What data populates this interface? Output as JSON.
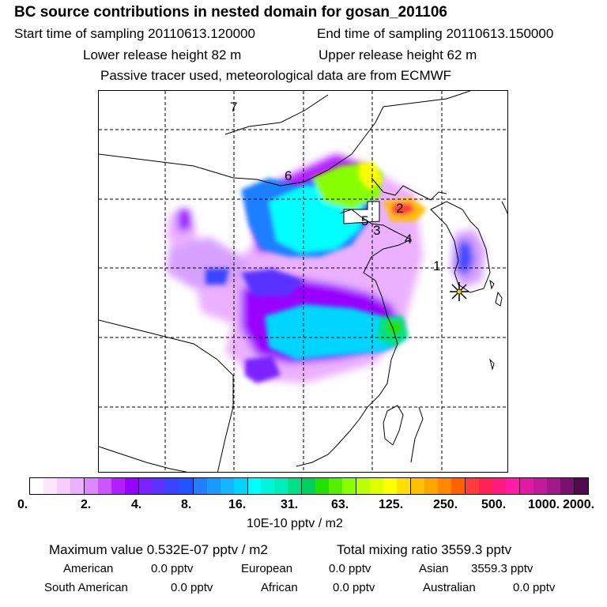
{
  "header": {
    "title": "BC  source contributions in nested domain for gosan_201106",
    "start_label": "Start time of sampling 20110613.120000",
    "end_label": "End time of sampling 20110613.150000",
    "lower_label": "Lower release height   82 m",
    "upper_label": "Upper release height   62 m",
    "tracer_note": "Passive tracer used, meteorological data are from ECMWF"
  },
  "map": {
    "region_labels": [
      "7",
      "6",
      "2",
      "5",
      "3",
      "4",
      "1"
    ],
    "receptor_icon": "star-icon"
  },
  "colorbar": {
    "unit": "10E-10 pptv / m2",
    "tick_labels": [
      "0.",
      "2.",
      "4.",
      "8.",
      "16.",
      "31.",
      "63.",
      "125.",
      "250.",
      "500.",
      "1000.",
      "2000."
    ],
    "colors": [
      "#ffffff",
      "#ffe6ff",
      "#f7ccff",
      "#ebb0ff",
      "#dd88ff",
      "#cc55ff",
      "#b41eff",
      "#9a00ff",
      "#7b22ff",
      "#5a33ff",
      "#3a44ff",
      "#2255ff",
      "#1f7fff",
      "#1a99ff",
      "#11b6ff",
      "#00d5ff",
      "#00ffff",
      "#00f5dd",
      "#00eebb",
      "#00e088",
      "#00d060",
      "#22e000",
      "#55ee00",
      "#88ff00",
      "#bbff00",
      "#ddff00",
      "#ffff00",
      "#ffe000",
      "#ffc000",
      "#ffa500",
      "#ff8800",
      "#ff6000",
      "#ff3c3c",
      "#ff2255",
      "#ff1a80",
      "#ff1aaa",
      "#e01aa5",
      "#c01a9a",
      "#a0188c",
      "#7a1070",
      "#520a50"
    ]
  },
  "stats": {
    "max_label": "Maximum value  0.532E-07 pptv / m2",
    "total_label": "Total mixing ratio     3559.3 pptv",
    "regions": [
      {
        "name": "American",
        "value": "0.0 pptv"
      },
      {
        "name": "European",
        "value": "0.0 pptv"
      },
      {
        "name": "Asian",
        "value": "3559.3 pptv"
      },
      {
        "name": "South American",
        "value": "0.0 pptv"
      },
      {
        "name": "African",
        "value": "0.0 pptv"
      },
      {
        "name": "Australian",
        "value": "0.0 pptv"
      }
    ]
  }
}
